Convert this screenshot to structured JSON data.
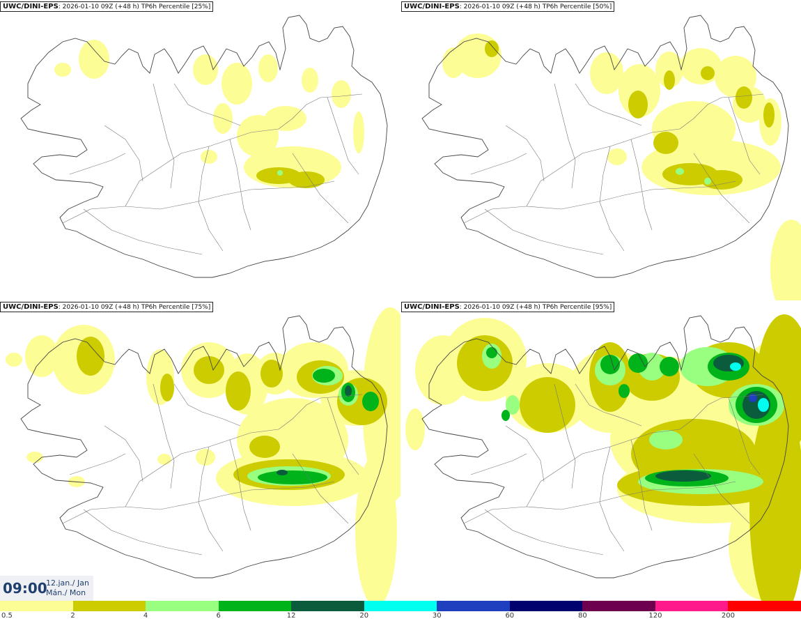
{
  "panels": [
    {
      "model": "UWC/DINI-EPS",
      "info": ": 2026-01-10 09Z (+48 h) TP6h Percentile [25%]",
      "level": 0
    },
    {
      "model": "UWC/DINI-EPS",
      "info": ": 2026-01-10 09Z (+48 h) TP6h Percentile [50%]",
      "level": 1
    },
    {
      "model": "UWC/DINI-EPS",
      "info": ": 2026-01-10 09Z (+48 h) TP6h Percentile [75%]",
      "level": 2
    },
    {
      "model": "UWC/DINI-EPS",
      "info": ": 2026-01-10 09Z (+48 h) TP6h Percentile [95%]",
      "level": 3
    }
  ],
  "valid_time": {
    "time": "09:00",
    "date_line1": "12.jan./ Jan",
    "date_line2": "Mán./ Mon"
  },
  "colorbar": {
    "labels": [
      "0.5",
      "2",
      "4",
      "6",
      "12",
      "20",
      "30",
      "60",
      "80",
      "120",
      "200"
    ],
    "colors": [
      "#fdfd96",
      "#cccc00",
      "#99ff80",
      "#00b31a",
      "#0b5c3c",
      "#00ffee",
      "#1f3fbf",
      "#00006e",
      "#6e0050",
      "#ff1a8c",
      "#ff0000"
    ]
  },
  "field_colors": {
    "yellow": "#fdfd96",
    "olive": "#cccc00",
    "lightgreen": "#99ff80",
    "green": "#00b31a",
    "darkgreen": "#0b5c3c",
    "cyan": "#00ffee",
    "blue": "#1f3fbf"
  }
}
